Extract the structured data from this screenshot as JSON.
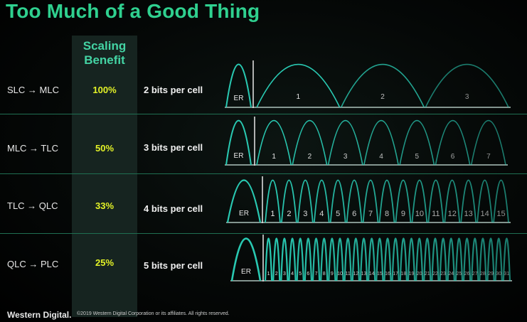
{
  "title": "Too Much of a Good Thing",
  "scaling_header": [
    "Scaling",
    "Benefit"
  ],
  "rows": [
    {
      "transition": "SLC → MLC",
      "benefit": "100%",
      "bits": "2 bits per cell",
      "er_label": "ER",
      "states": [
        "1",
        "2",
        "3"
      ]
    },
    {
      "transition": "MLC → TLC",
      "benefit": "50%",
      "bits": "3 bits per cell",
      "er_label": "ER",
      "states": [
        "1",
        "2",
        "3",
        "4",
        "5",
        "6",
        "7"
      ]
    },
    {
      "transition": "TLC → QLC",
      "benefit": "33%",
      "bits": "4 bits per cell",
      "er_label": "ER",
      "states": [
        "1",
        "2",
        "3",
        "4",
        "5",
        "6",
        "7",
        "8",
        "9",
        "10",
        "11",
        "12",
        "13",
        "14",
        "15"
      ]
    },
    {
      "transition": "QLC → PLC",
      "benefit": "25%",
      "bits": "5 bits per cell",
      "er_label": "ER",
      "states": [
        "1",
        "2",
        "3",
        "4",
        "5",
        "6",
        "7",
        "8",
        "9",
        "10",
        "11",
        "12",
        "13",
        "14",
        "15",
        "16",
        "17",
        "18",
        "19",
        "20",
        "21",
        "22",
        "23",
        "24",
        "25",
        "26",
        "27",
        "28",
        "29",
        "30",
        "31"
      ]
    }
  ],
  "footer": {
    "brand": "Western Digital.",
    "copyright": "©2019 Western Digital Corporation or its affiliates. All rights reserved."
  },
  "colors": {
    "accent": "#2fd08f",
    "benefit": "#e3f227",
    "curve": "#29c9b2"
  }
}
